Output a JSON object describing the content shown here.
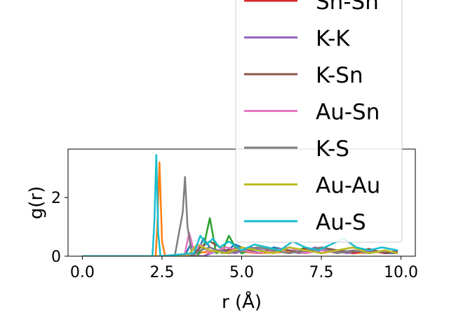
{
  "chart_data": {
    "type": "line",
    "title": "",
    "xlabel": "r (Å)",
    "ylabel": "g(r)",
    "xlim": [
      -0.45,
      10.45
    ],
    "ylim": [
      0,
      3.65
    ],
    "xticks": [
      0.0,
      2.5,
      5.0,
      7.5,
      10.0
    ],
    "xtick_labels": [
      "0.0",
      "2.5",
      "5.0",
      "7.5",
      "10.0"
    ],
    "yticks": [
      0,
      2
    ],
    "ytick_labels": [
      "0",
      "2"
    ],
    "grid": false,
    "legend_position": "upper-right, extending above the plot area",
    "series": [
      {
        "name": "",
        "color": "#1f77b4",
        "x": [
          0.0,
          3.2,
          3.4,
          3.6,
          3.8,
          4.0,
          4.4,
          4.8,
          5.2,
          5.6,
          6.0,
          6.5,
          7.0,
          7.5,
          8.0,
          8.5,
          9.0,
          9.5,
          9.9
        ],
        "y": [
          0.0,
          0.0,
          0.4,
          0.1,
          0.6,
          0.3,
          0.1,
          0.4,
          0.2,
          0.1,
          0.3,
          0.2,
          0.1,
          0.3,
          0.2,
          0.1,
          0.2,
          0.1,
          0.1
        ]
      },
      {
        "name": "",
        "color": "#ff7f0e",
        "x": [
          0.0,
          2.3,
          2.35,
          2.42,
          2.5,
          2.6,
          3.5,
          4.5,
          5.5,
          6.5,
          7.5,
          8.5,
          9.5,
          9.9
        ],
        "y": [
          0.0,
          0.0,
          1.0,
          3.2,
          0.5,
          0.0,
          0.1,
          0.2,
          0.1,
          0.15,
          0.2,
          0.1,
          0.15,
          0.1
        ]
      },
      {
        "name": "",
        "color": "#2ca02c",
        "x": [
          0.0,
          3.6,
          3.8,
          4.0,
          4.2,
          4.4,
          4.6,
          4.8,
          5.0,
          5.5,
          6.0,
          6.5,
          7.0,
          7.5,
          8.0,
          8.5,
          9.0,
          9.5,
          9.9
        ],
        "y": [
          0.0,
          0.0,
          0.3,
          1.3,
          0.1,
          0.2,
          0.7,
          0.3,
          0.1,
          0.3,
          0.2,
          0.1,
          0.3,
          0.1,
          0.2,
          0.3,
          0.1,
          0.2,
          0.1
        ]
      },
      {
        "name": "Sn-Sn",
        "color": "#d62728",
        "x": [
          0.0,
          3.8,
          4.2,
          4.6,
          5.0,
          5.5,
          6.0,
          6.5,
          7.0,
          7.5,
          8.0,
          8.5,
          9.0,
          9.5,
          9.9
        ],
        "y": [
          0.0,
          0.0,
          0.2,
          0.1,
          0.3,
          0.1,
          0.2,
          0.1,
          0.25,
          0.1,
          0.2,
          0.1,
          0.2,
          0.1,
          0.15
        ]
      },
      {
        "name": "K-K",
        "color": "#9467bd",
        "x": [
          0.0,
          3.8,
          4.3,
          4.8,
          5.3,
          5.8,
          6.3,
          6.8,
          7.3,
          7.8,
          8.3,
          8.8,
          9.3,
          9.9
        ],
        "y": [
          0.0,
          0.0,
          0.2,
          0.1,
          0.3,
          0.15,
          0.25,
          0.1,
          0.3,
          0.2,
          0.1,
          0.2,
          0.15,
          0.1
        ]
      },
      {
        "name": "K-Sn",
        "color": "#8c564b",
        "x": [
          0.0,
          3.4,
          3.7,
          4.0,
          4.5,
          5.0,
          5.5,
          6.0,
          6.5,
          7.0,
          7.5,
          8.0,
          8.5,
          9.0,
          9.5,
          9.9
        ],
        "y": [
          0.0,
          0.0,
          0.3,
          0.5,
          0.2,
          0.3,
          0.1,
          0.25,
          0.2,
          0.1,
          0.3,
          0.2,
          0.15,
          0.25,
          0.1,
          0.2
        ]
      },
      {
        "name": "Au-Sn",
        "color": "#e377c2",
        "x": [
          0.0,
          3.2,
          3.35,
          3.5,
          3.7,
          4.0,
          4.5,
          5.0,
          5.5,
          6.0,
          6.5,
          7.0,
          7.5,
          8.0,
          8.5,
          9.0,
          9.5,
          9.9
        ],
        "y": [
          0.0,
          0.0,
          0.8,
          0.2,
          0.4,
          0.1,
          0.3,
          0.2,
          0.1,
          0.2,
          0.3,
          0.1,
          0.2,
          0.1,
          0.2,
          0.1,
          0.2,
          0.1
        ]
      },
      {
        "name": "K-S",
        "color": "#7f7f7f",
        "x": [
          0.0,
          2.9,
          3.05,
          3.15,
          3.22,
          3.3,
          3.45,
          3.7,
          4.0,
          4.5,
          5.0,
          5.5,
          6.0,
          6.5,
          7.0,
          7.5,
          8.0,
          8.5,
          9.0,
          9.5,
          9.9
        ],
        "y": [
          0.0,
          0.0,
          0.9,
          1.5,
          2.7,
          1.0,
          0.0,
          0.2,
          0.3,
          0.1,
          0.2,
          0.3,
          0.2,
          0.1,
          0.2,
          0.3,
          0.1,
          0.2,
          0.1,
          0.2,
          0.1
        ]
      },
      {
        "name": "Au-Au",
        "color": "#bcbd22",
        "x": [
          0.0,
          3.3,
          3.6,
          4.0,
          4.5,
          5.0,
          5.5,
          6.0,
          6.5,
          7.0,
          7.5,
          8.0,
          8.5,
          9.0,
          9.5,
          9.9
        ],
        "y": [
          0.0,
          0.0,
          0.4,
          0.2,
          0.1,
          0.3,
          0.2,
          0.1,
          0.3,
          0.2,
          0.1,
          0.2,
          0.3,
          0.1,
          0.2,
          0.1
        ]
      },
      {
        "name": "Au-S",
        "color": "#17becf",
        "x": [
          0.0,
          2.2,
          2.26,
          2.32,
          2.38,
          2.45,
          3.5,
          3.7,
          3.9,
          4.1,
          4.3,
          4.6,
          5.0,
          5.4,
          5.8,
          6.2,
          6.6,
          7.0,
          7.4,
          7.8,
          8.2,
          8.6,
          9.0,
          9.4,
          9.9
        ],
        "y": [
          0.0,
          0.0,
          1.2,
          3.45,
          0.8,
          0.0,
          0.1,
          0.7,
          0.4,
          0.6,
          0.3,
          0.5,
          0.2,
          0.4,
          0.3,
          0.2,
          0.5,
          0.3,
          0.2,
          0.4,
          0.6,
          0.3,
          0.2,
          0.3,
          0.2
        ]
      }
    ]
  }
}
